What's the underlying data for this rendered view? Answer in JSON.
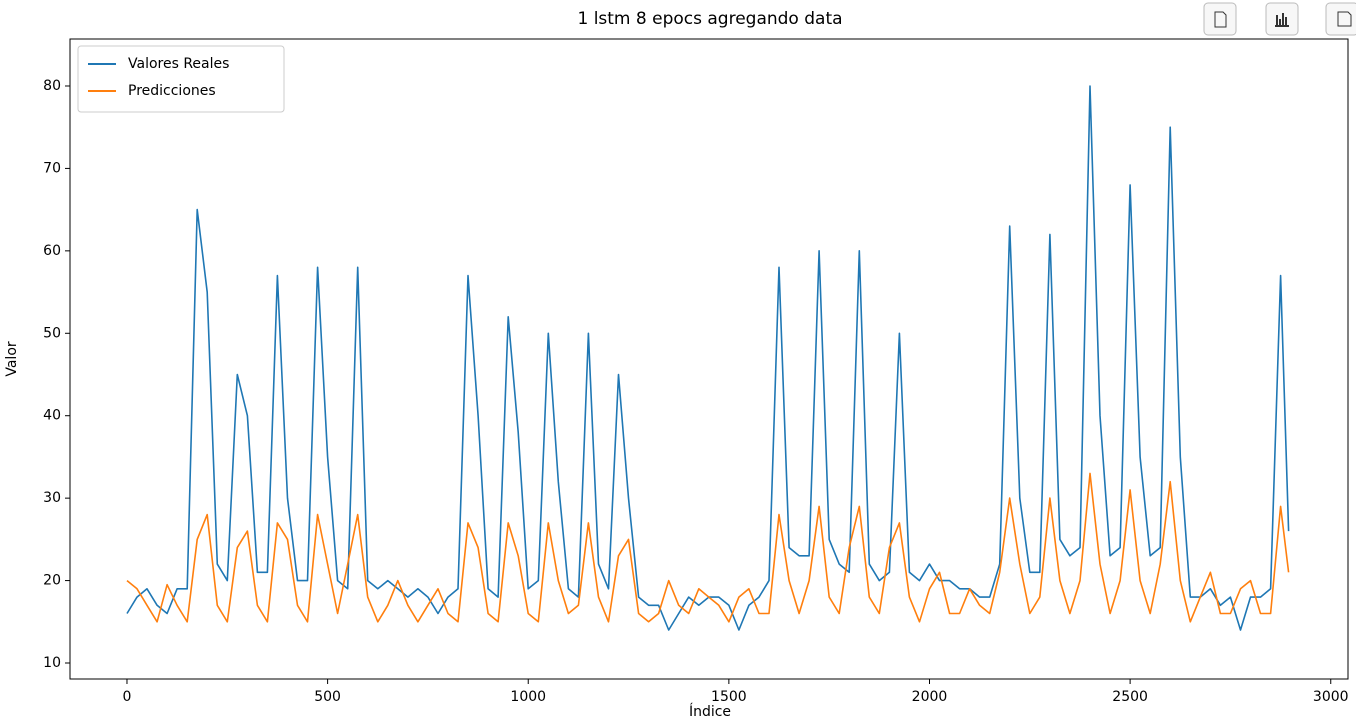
{
  "chart_data": {
    "type": "line",
    "title": "1 lstm 8 epocs agregando data",
    "xlabel": "Índice",
    "ylabel": "Valor",
    "x": [
      0,
      25,
      50,
      75,
      100,
      125,
      150,
      175,
      200,
      225,
      250,
      275,
      300,
      325,
      350,
      375,
      400,
      425,
      450,
      475,
      500,
      525,
      550,
      575,
      600,
      625,
      650,
      675,
      700,
      725,
      750,
      775,
      800,
      825,
      850,
      875,
      900,
      925,
      950,
      975,
      1000,
      1025,
      1050,
      1075,
      1100,
      1125,
      1150,
      1175,
      1200,
      1225,
      1250,
      1275,
      1300,
      1325,
      1350,
      1375,
      1400,
      1425,
      1450,
      1475,
      1500,
      1525,
      1550,
      1575,
      1600,
      1625,
      1650,
      1675,
      1700,
      1725,
      1750,
      1775,
      1800,
      1825,
      1850,
      1875,
      1900,
      1925,
      1950,
      1975,
      2000,
      2025,
      2050,
      2075,
      2100,
      2125,
      2150,
      2175,
      2200,
      2225,
      2250,
      2275,
      2300,
      2325,
      2350,
      2375,
      2400,
      2425,
      2450,
      2475,
      2500,
      2525,
      2550,
      2575,
      2600,
      2625,
      2650,
      2675,
      2700,
      2725,
      2750,
      2775,
      2800,
      2825,
      2850,
      2875,
      2895
    ],
    "series": [
      {
        "name": "Valores Reales",
        "color": "#1f77b4",
        "values": [
          16,
          18,
          19,
          17,
          16,
          19,
          19,
          65,
          55,
          22,
          20,
          45,
          40,
          21,
          21,
          57,
          30,
          20,
          20,
          58,
          35,
          20,
          19,
          58,
          20,
          19,
          20,
          19,
          18,
          19,
          18,
          16,
          18,
          19,
          57,
          40,
          19,
          18,
          52,
          38,
          19,
          20,
          50,
          32,
          19,
          18,
          50,
          22,
          19,
          45,
          30,
          18,
          17,
          17,
          14,
          16,
          18,
          17,
          18,
          18,
          17,
          14,
          17,
          18,
          20,
          58,
          24,
          23,
          23,
          60,
          25,
          22,
          21,
          60,
          22,
          20,
          21,
          50,
          21,
          20,
          22,
          20,
          20,
          19,
          19,
          18,
          18,
          22,
          63,
          30,
          21,
          21,
          62,
          25,
          23,
          24,
          80,
          40,
          23,
          24,
          68,
          35,
          23,
          24,
          75,
          35,
          18,
          18,
          19,
          17,
          18,
          14,
          18,
          18,
          19,
          57,
          26
        ]
      },
      {
        "name": "Predicciones",
        "color": "#ff7f0e",
        "values": [
          20,
          19,
          17,
          15,
          19.5,
          17,
          15,
          25,
          28,
          17,
          15,
          24,
          26,
          17,
          15,
          27,
          25,
          17,
          15,
          28,
          22,
          16,
          22,
          28,
          18,
          15,
          17,
          20,
          17,
          15,
          17,
          19,
          16,
          15,
          27,
          24,
          16,
          15,
          27,
          23,
          16,
          15,
          27,
          20,
          16,
          17,
          27,
          18,
          15,
          23,
          25,
          16,
          15,
          16,
          20,
          17,
          16,
          19,
          18,
          17,
          15,
          18,
          19,
          16,
          16,
          28,
          20,
          16,
          20,
          29,
          18,
          16,
          24,
          29,
          18,
          16,
          24,
          27,
          18,
          15,
          19,
          21,
          16,
          16,
          19,
          17,
          16,
          21,
          30,
          22,
          16,
          18,
          30,
          20,
          16,
          20,
          33,
          22,
          16,
          20,
          31,
          20,
          16,
          22,
          32,
          20,
          15,
          18,
          21,
          16,
          16,
          19,
          20,
          16,
          16,
          29,
          21
        ]
      }
    ],
    "xlim": [
      -142,
      3043
    ],
    "ylim": [
      8.06,
      85.7
    ],
    "xticks": [
      0,
      500,
      1000,
      1500,
      2000,
      2500,
      3000
    ],
    "yticks": [
      10,
      20,
      30,
      40,
      50,
      60,
      70,
      80
    ],
    "legend": "upper left"
  }
}
